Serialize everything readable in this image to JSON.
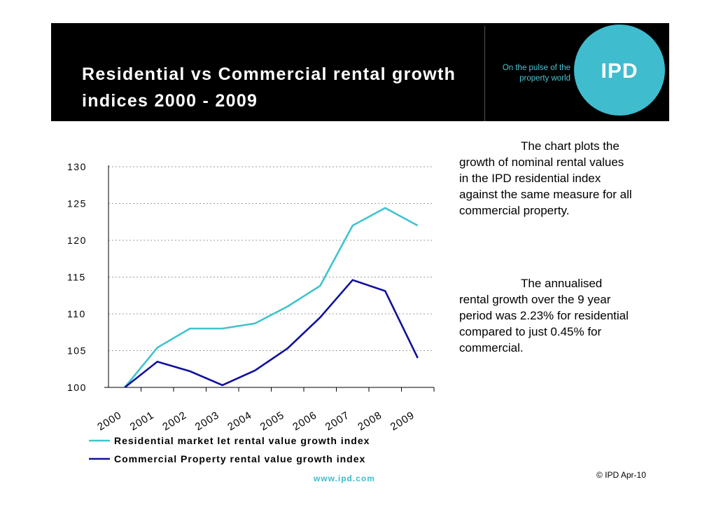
{
  "header": {
    "title": "Residential vs Commercial rental growth indices 2000 - 2009",
    "tagline": "On the pulse of the property world",
    "logo": "IPD"
  },
  "chart_data": {
    "type": "line",
    "categories": [
      "2000",
      "2001",
      "2002",
      "2003",
      "2004",
      "2005",
      "2006",
      "2007",
      "2008",
      "2009"
    ],
    "series": [
      {
        "name": "Residential market let rental value growth index",
        "color": "#40c3cf",
        "values": [
          100,
          105.4,
          108,
          108,
          108.7,
          111,
          113.8,
          122,
          124.4,
          122
        ]
      },
      {
        "name": "Commercial Property rental value growth index",
        "color": "#11119a",
        "values": [
          100,
          103.5,
          102.2,
          100.3,
          102.3,
          105.3,
          109.5,
          114.6,
          113.1,
          104
        ]
      }
    ],
    "ylim": [
      100,
      130
    ],
    "yticks": [
      "100",
      "105",
      "110",
      "115",
      "120",
      "125",
      "130"
    ],
    "grid": true,
    "legend": "bottom",
    "title": "",
    "xlabel": "",
    "ylabel": ""
  },
  "notes": [
    {
      "first": "The chart plots",
      "rest": "the growth of nominal rental values in the IPD residential index against the same measure for all commercial property."
    },
    {
      "first": "The annualised",
      "rest": "rental growth over the 9 year period was 2.23% for residential compared to just 0.45% for commercial."
    }
  ],
  "footer": {
    "website": "www.ipd.com",
    "copyright": "© IPD Apr-10"
  }
}
